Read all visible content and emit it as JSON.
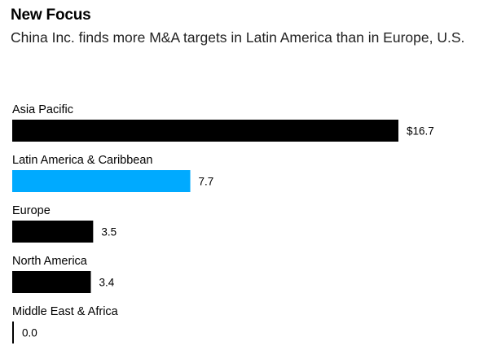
{
  "header": {
    "title": "New Focus",
    "subtitle": "China Inc. finds more M&A targets in Latin America than in Europe, U.S."
  },
  "chart_data": {
    "type": "bar",
    "orientation": "horizontal",
    "title": "New Focus",
    "subtitle": "China Inc. finds more M&A targets in Latin America than in Europe, U.S.",
    "categories": [
      "Asia Pacific",
      "Latin America & Caribbean",
      "Europe",
      "North America",
      "Middle East & Africa"
    ],
    "values": [
      16.7,
      7.7,
      3.5,
      3.4,
      0.0
    ],
    "value_labels": [
      "$16.7",
      "7.7",
      "3.5",
      "3.4",
      "0.0"
    ],
    "colors": [
      "#000000",
      "#00aaff",
      "#000000",
      "#000000",
      "#000000"
    ],
    "xlim": [
      0,
      16.7
    ],
    "xlabel": "",
    "ylabel": "",
    "grid": false,
    "legend": "none"
  }
}
